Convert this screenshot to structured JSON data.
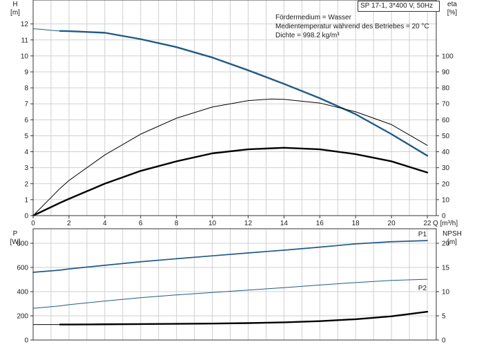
{
  "header": {
    "title": "SP 17-1, 3*400 V, 50Hz",
    "info": [
      "Fördermedium = Wasser",
      "Medientemperatur während des Betriebes = 20 °C",
      "Dichte = 998.2 kg/m³"
    ]
  },
  "chart_data": [
    {
      "type": "line",
      "name": "Förderhöhe / Wirkungsgrad",
      "xlabel": "Q [m³/h]",
      "xlim": [
        0,
        22.5
      ],
      "x_ticks": [
        0,
        2,
        4,
        6,
        8,
        10,
        12,
        14,
        16,
        18,
        20,
        22
      ],
      "left_axis": {
        "label_line1": "H",
        "label_line2": "[m]",
        "ylim": [
          0,
          13.5
        ],
        "ticks": [
          0,
          1,
          2,
          3,
          4,
          5,
          6,
          7,
          8,
          9,
          10,
          11,
          12
        ]
      },
      "right_axis": {
        "label_line1": "eta",
        "label_line2": "[%]",
        "ylim": [
          0,
          135
        ],
        "ticks": [
          0,
          10,
          20,
          30,
          40,
          50,
          60,
          70,
          80,
          90,
          100
        ]
      },
      "grid": true,
      "colors": {
        "head": "#1f5b86",
        "efficiency": "#000000"
      },
      "series": [
        {
          "name": "",
          "key": "head_ext",
          "axis": "left",
          "color": "#1f5b86",
          "style": "thin",
          "x": [
            0,
            0.5,
            1,
            1.5
          ],
          "y": [
            11.7,
            11.66,
            11.6,
            11.56
          ]
        },
        {
          "name": "",
          "key": "head",
          "axis": "left",
          "color": "#1f5b86",
          "style": "thick",
          "x": [
            1.5,
            2,
            4,
            6,
            8,
            10,
            12,
            14,
            16,
            18,
            20,
            22
          ],
          "y": [
            11.56,
            11.55,
            11.45,
            11.05,
            10.55,
            9.9,
            9.1,
            8.25,
            7.35,
            6.35,
            5.1,
            3.75
          ]
        },
        {
          "name": "",
          "key": "eta_total",
          "axis": "right",
          "color": "#000000",
          "style": "thin",
          "x": [
            0,
            1.5,
            2,
            4,
            6,
            8,
            10,
            12,
            13.3,
            14,
            16,
            18,
            20,
            22
          ],
          "y": [
            0,
            17,
            22,
            38,
            51,
            61,
            68,
            72,
            73,
            72.8,
            70.5,
            65,
            57,
            44
          ]
        },
        {
          "name": "",
          "key": "eta_hydraulic",
          "axis": "right",
          "color": "#000000",
          "style": "thick",
          "x": [
            0,
            1.5,
            2,
            4,
            6,
            8,
            10,
            12,
            14,
            16,
            18,
            20,
            22
          ],
          "y": [
            0,
            8,
            10.5,
            20,
            28,
            34,
            39,
            41.5,
            42.5,
            41.5,
            38.5,
            34,
            27
          ]
        }
      ]
    },
    {
      "type": "line",
      "name": "Leistung / NPSH",
      "xlim": [
        0,
        22.5
      ],
      "left_axis": {
        "label_line1": "P",
        "label_line2": "[W]",
        "ylim": [
          0,
          920
        ],
        "ticks": [
          0,
          200,
          400,
          600,
          800
        ]
      },
      "right_axis": {
        "label_line1": "NPSH",
        "label_line2": "[m]",
        "ylim": [
          0,
          23
        ],
        "ticks": [
          0,
          5,
          10,
          15,
          20
        ]
      },
      "grid": true,
      "series": [
        {
          "name": "P1",
          "key": "p1",
          "axis": "left",
          "color": "#1f5b86",
          "style": "mix",
          "x": [
            0,
            1.5,
            2,
            4,
            6,
            8,
            10,
            12,
            14,
            16,
            18,
            20,
            22
          ],
          "y": [
            560,
            578,
            588,
            618,
            647,
            672,
            696,
            720,
            743,
            768,
            795,
            813,
            822
          ]
        },
        {
          "name": "P2",
          "key": "p2",
          "axis": "left",
          "color": "#1f5b86",
          "style": "thin",
          "x": [
            0,
            1.5,
            2,
            4,
            6,
            8,
            10,
            12,
            14,
            16,
            18,
            20,
            22
          ],
          "y": [
            262,
            282,
            292,
            322,
            350,
            373,
            393,
            413,
            433,
            455,
            475,
            493,
            502
          ]
        },
        {
          "name": "",
          "key": "npsh_ext",
          "axis": "right",
          "color": "#000000",
          "style": "thin",
          "x": [
            0,
            1.5
          ],
          "y": [
            3.2,
            3.2
          ]
        },
        {
          "name": "",
          "key": "npsh",
          "axis": "right",
          "color": "#000000",
          "style": "thick",
          "x": [
            1.5,
            2,
            4,
            6,
            8,
            10,
            12,
            14,
            16,
            18,
            20,
            22
          ],
          "y": [
            3.2,
            3.2,
            3.25,
            3.3,
            3.35,
            3.4,
            3.5,
            3.65,
            3.9,
            4.3,
            4.9,
            5.85
          ]
        }
      ]
    }
  ]
}
